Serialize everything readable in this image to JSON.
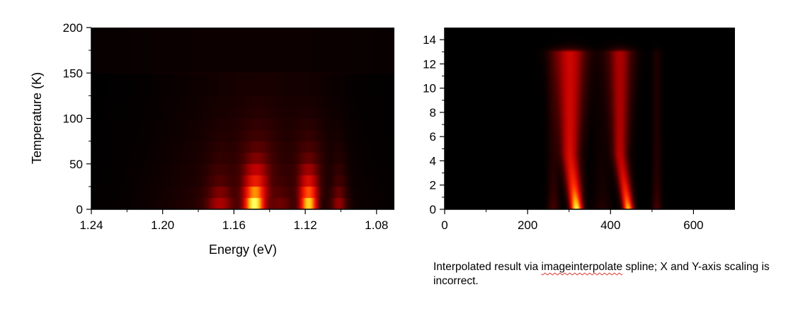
{
  "chart_data": [
    {
      "type": "heatmap",
      "xlabel": "Energy (eV)",
      "ylabel": "Temperature (K)",
      "xlim": [
        1.24,
        1.07
      ],
      "ylim": [
        0,
        200
      ],
      "x_ticks": [
        1.24,
        1.2,
        1.16,
        1.12,
        1.08
      ],
      "x_tick_labels": [
        "1.24",
        "1.20",
        "1.16",
        "1.12",
        "1.08"
      ],
      "y_ticks": [
        0,
        50,
        100,
        150,
        200
      ],
      "y_tick_labels": [
        "0",
        "50",
        "100",
        "150",
        "200"
      ],
      "grid": false,
      "colormap": [
        "#000000",
        "#4a0000",
        "#c00000",
        "#ff2a00",
        "#ffb000",
        "#ffff60"
      ],
      "band_temperatures": [
        0,
        12.5,
        25,
        37.5,
        50,
        62.5,
        75,
        87.5,
        100,
        112.5,
        125,
        150
      ],
      "peaks_at_lowest_temperature": [
        {
          "energy": 1.1485,
          "intensity": 1.0
        },
        {
          "energy": 1.118,
          "intensity": 0.85
        }
      ]
    },
    {
      "type": "heatmap",
      "xlim": [
        0,
        700
      ],
      "ylim": [
        0,
        15
      ],
      "x_ticks": [
        0,
        200,
        400,
        600
      ],
      "x_tick_labels": [
        "0",
        "200",
        "400",
        "600"
      ],
      "y_ticks": [
        0,
        2,
        4,
        6,
        8,
        10,
        12,
        14
      ],
      "y_tick_labels": [
        "0",
        "2",
        "4",
        "6",
        "8",
        "10",
        "12",
        "14"
      ],
      "grid": false,
      "colormap": [
        "#000000",
        "#4a0000",
        "#c00000",
        "#ff2a00",
        "#ffb000",
        "#ffff60"
      ],
      "peaks_at_lowest_y": [
        {
          "x": 318,
          "intensity": 1.0
        },
        {
          "x": 443,
          "intensity": 0.85
        }
      ]
    }
  ],
  "caption": {
    "before": "Interpolated result via ",
    "underlined": "imageinterpolate",
    "after": " spline; X and Y-axis scaling is incorrect."
  }
}
